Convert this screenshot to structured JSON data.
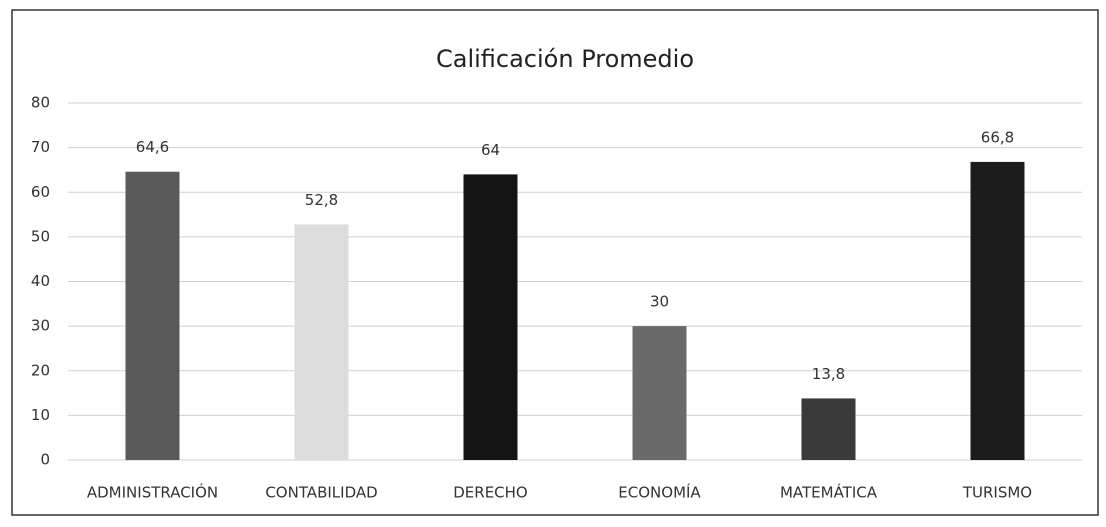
{
  "chart_data": {
    "type": "bar",
    "title": "Calificación Promedio",
    "categories": [
      "ADMINISTRACIÓN",
      "CONTABILIDAD",
      "DERECHO",
      "ECONOMÍA",
      "MATEMÁTICA",
      "TURISMO"
    ],
    "values": [
      64.6,
      52.8,
      64,
      30,
      13.8,
      66.8
    ],
    "value_labels": [
      "64,6",
      "52,8",
      "64",
      "30",
      "13,8",
      "66,8"
    ],
    "colors": [
      "#5a5a5a",
      "#dcdcdc",
      "#141414",
      "#6a6a6a",
      "#3a3a3a",
      "#1c1c1c"
    ],
    "ylim": [
      0,
      80
    ],
    "yticks": [
      0,
      10,
      20,
      30,
      40,
      50,
      60,
      70,
      80
    ],
    "grid": true
  }
}
